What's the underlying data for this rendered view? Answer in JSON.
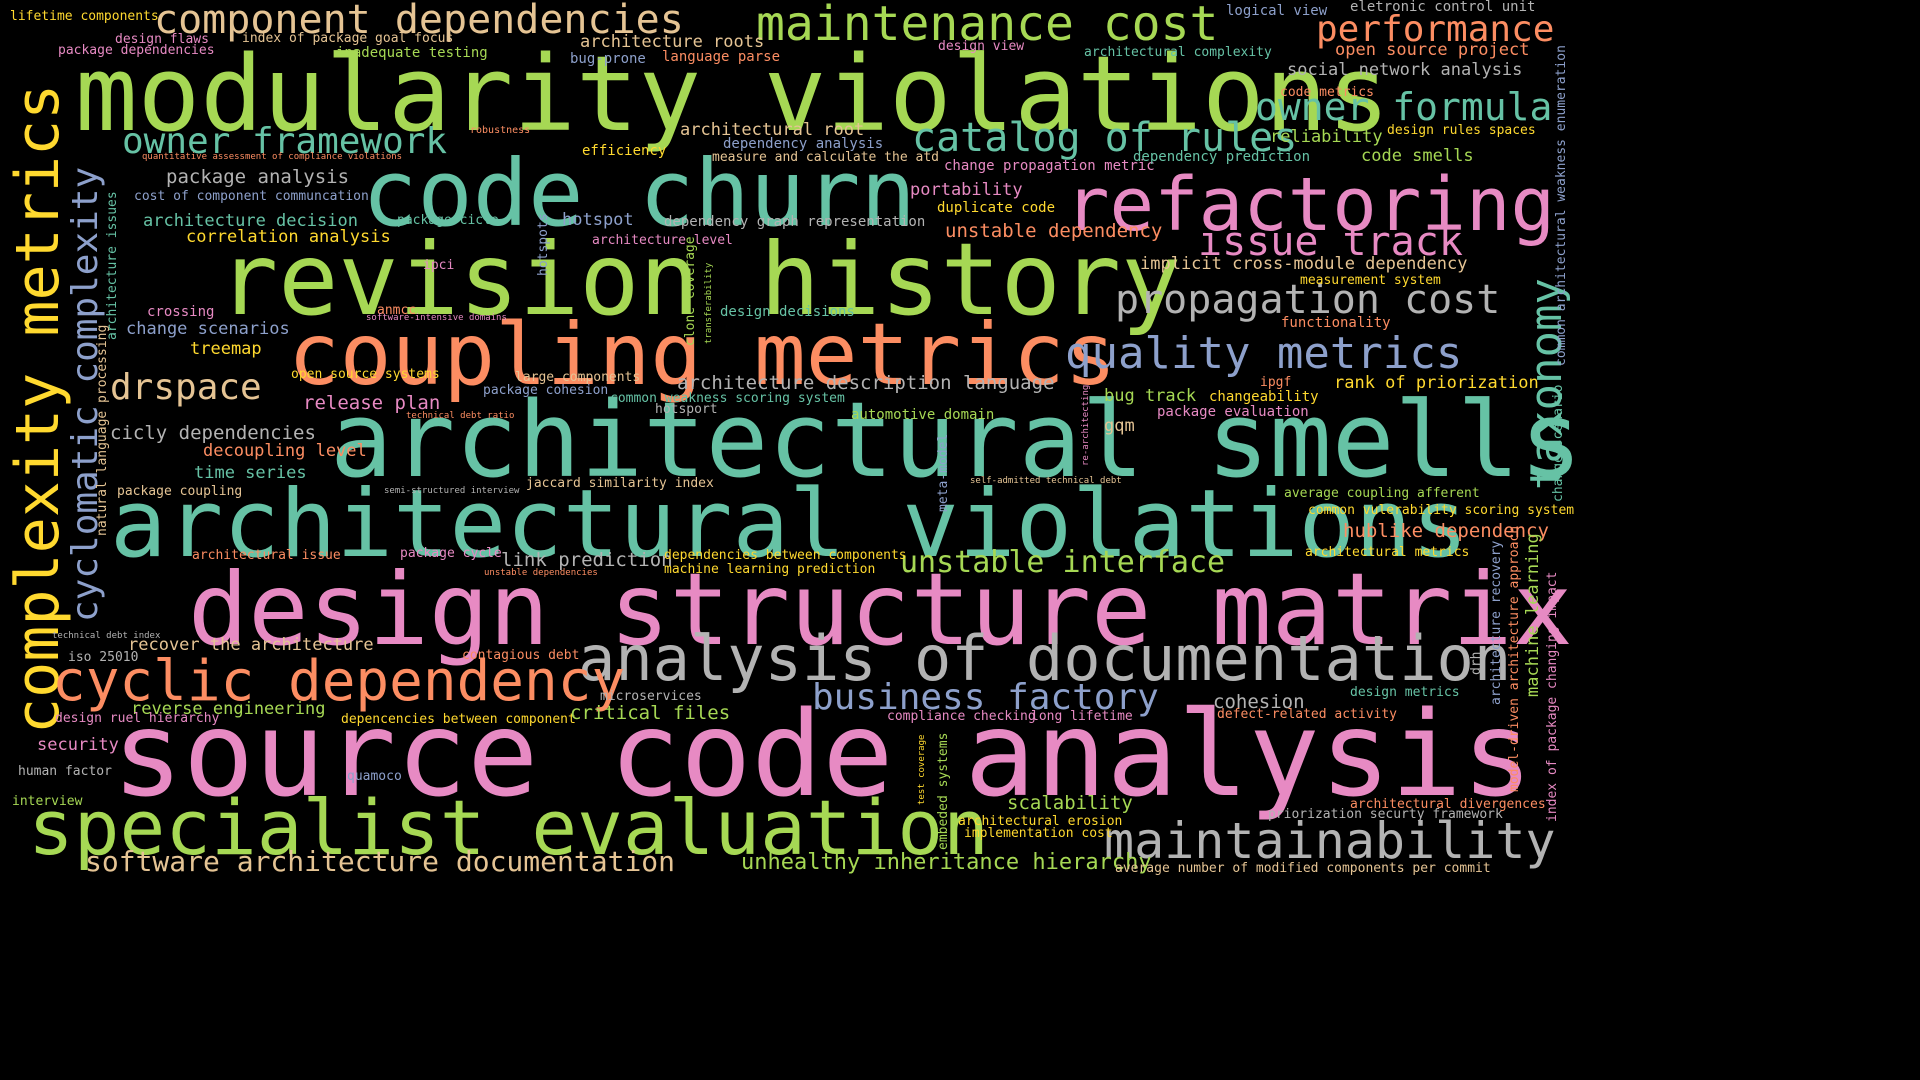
{
  "palette": {
    "background": "#000000",
    "green": "#a6d854",
    "teal": "#66c2a5",
    "pink": "#e78ac3",
    "orange": "#fc8d62",
    "blue": "#8da0cb",
    "yellow": "#ffd92f",
    "tan": "#e5c494",
    "gray": "#b3b3b3"
  },
  "words": [
    "source code analysis",
    "architectural smells",
    "architectural violations",
    "modularity violations",
    "design structure matrix",
    "revision history",
    "code churn",
    "coupling metrics",
    "complexity metrics",
    "refactoring",
    "specialist evaluation",
    "analysis of documentation",
    "cyclic dependency",
    "maintenance cost",
    "maintainability",
    "component dependencies",
    "catalog of rules",
    "propagation cost",
    "quality metrics",
    "owner framework",
    "owner formula",
    "issue track",
    "taxonomy",
    "cyclomatic complexity",
    "business factory",
    "drspace",
    "performance",
    "software architecture documentation",
    "unstable interface",
    "unhealthy inheritance hierarchy",
    "lifetime components",
    "design flaws",
    "package dependencies",
    "index of package goal focus",
    "inadequate testing",
    "architecture roots",
    "bug-prone",
    "language parse",
    "logical view",
    "eletronic control unit",
    "open source project",
    "design view",
    "architectural complexity",
    "social network analysis",
    "code metrics",
    "reliability",
    "design rules spaces",
    "architectural root",
    "dependency analysis",
    "robustness",
    "efficiency",
    "measure and calculate the atd",
    "quantitative assessment of compliance violations",
    "change propagation metric",
    "dependency prediction",
    "code smells",
    "package analysis",
    "cost of component communcation",
    "portability",
    "duplicate code",
    "architecture decision",
    "package cicle",
    "hotspot",
    "dependency graph representation",
    "correlation analysis",
    "architecture issues",
    "architecture level",
    "unstable dependency",
    "implicit cross-module dependency",
    "ipci",
    "hotspots",
    "measurement system",
    "crossing",
    "anmcc",
    "software-intensive domains",
    "clone coverage",
    "transferability",
    "design decisions",
    "change scenarios",
    "functionality",
    "treemap",
    "open source systems",
    "large components",
    "package cohesion",
    "architecture description language",
    "ipgf",
    "rank of priorization",
    "natural language processing",
    "common weakness scoring system",
    "bug track",
    "changeability",
    "release plan",
    "technical debt ratio",
    "hotsport",
    "package evaluation",
    "automotive domain",
    "cicly dependencies",
    "re-architecting",
    "gqm",
    "decoupling level",
    "meta-model",
    "time series",
    "jaccard similarity index",
    "self-admitted technical debt",
    "package coupling",
    "semi-structured interview",
    "average coupling afferent",
    "common vulerability scoring system",
    "architectural issue",
    "package cycle",
    "link prediction",
    "dependencies between components",
    "hublike dependency",
    "unstable dependencies",
    "machine learning prediction",
    "architectural metrics",
    "technical debt index",
    "recover the architecture",
    "iso 25010",
    "contagious debt",
    "microservices",
    "cohesion",
    "design metrics",
    "reverse engineering",
    "design ruel hierarchy",
    "depencencies between component",
    "critical files",
    "compliance checking",
    "long lifetime",
    "defect-related activity",
    "security",
    "human factor",
    "quamoco",
    "test coverage",
    "embeded systems",
    "interview",
    "scalability",
    "priorization securty framework",
    "architectural divergences",
    "architectural erosion",
    "implementation cost",
    "average number of modified components per commit",
    "common architectural weakness enumeration",
    "change scenario",
    "index of package changing impact",
    "architecture recovery",
    "model-driven architecture approach",
    "machine learning",
    "drh"
  ]
}
